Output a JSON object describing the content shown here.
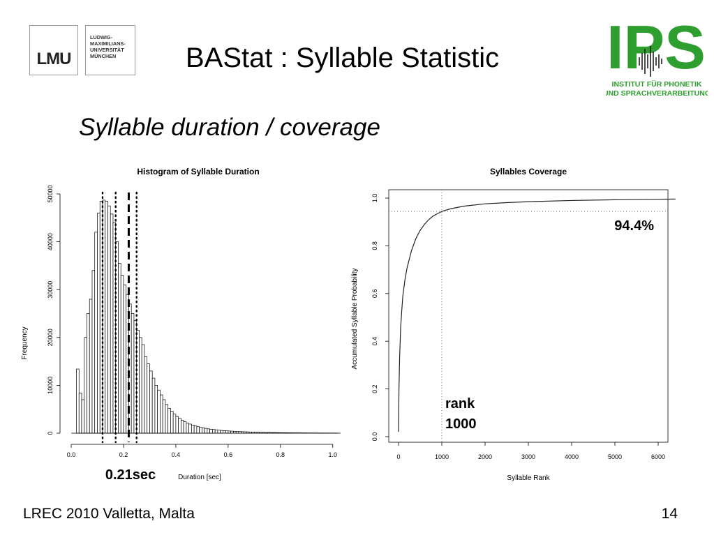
{
  "slide": {
    "title": "BAStat : Syllable Statistic",
    "subtitle": "Syllable duration / coverage",
    "footer_left": "LREC 2010 Valletta, Malta",
    "page_number": "14"
  },
  "logos": {
    "lmu": {
      "mark": "LMU",
      "text": "LUDWIG-\nMAXIMILIANS-\nUNIVERSITÄT\nMÜNCHEN"
    },
    "ips": {
      "mark": "IPS",
      "line1": "INSTITUT FÜR PHONETIK",
      "line2": "UND SPRACHVERARBEITUNG",
      "color": "#2e9e2e"
    }
  },
  "chart_data": [
    {
      "type": "bar",
      "title": "Histogram of Syllable Duration",
      "xlabel": "Duration [sec]",
      "ylabel": "Frequency",
      "xlim": [
        0,
        1.03
      ],
      "ylim": [
        0,
        50000
      ],
      "x_ticks": [
        "0.0",
        "0.2",
        "0.4",
        "0.6",
        "0.8",
        "1.0"
      ],
      "y_ticks": [
        "0",
        "10000",
        "20000",
        "30000",
        "40000",
        "50000"
      ],
      "bin_width": 0.01,
      "bin_start": 0.02,
      "values": [
        13400,
        8400,
        7000,
        20000,
        25000,
        28000,
        34000,
        42000,
        46000,
        48500,
        48700,
        48500,
        47500,
        45800,
        44000,
        40000,
        35500,
        33000,
        31000,
        29000,
        27000,
        25000,
        23500,
        21500,
        20000,
        18500,
        16000,
        14500,
        13000,
        11500,
        10000,
        9000,
        8000,
        7000,
        6000,
        5200,
        4600,
        4000,
        3500,
        3100,
        2700,
        2400,
        2100,
        1900,
        1700,
        1500,
        1350,
        1200,
        1100,
        1000,
        900,
        820,
        760,
        700,
        640,
        580,
        530,
        490,
        450,
        420,
        390,
        360,
        330,
        310,
        290,
        270,
        250,
        230,
        210,
        200,
        185,
        170,
        160,
        150,
        140,
        130,
        120,
        110,
        100,
        95,
        90,
        85,
        80,
        75,
        70,
        65,
        60,
        55,
        50,
        48,
        45,
        42,
        40,
        38,
        36,
        34,
        32,
        30,
        28,
        26
      ],
      "reference_lines": [
        {
          "x": 0.12,
          "style": "dotted"
        },
        {
          "x": 0.17,
          "style": "dotted"
        },
        {
          "x": 0.22,
          "style": "dashed"
        },
        {
          "x": 0.25,
          "style": "dotted"
        }
      ],
      "annotation": "0.21sec",
      "grid": false
    },
    {
      "type": "line",
      "title": "Syllables Coverage",
      "xlabel": "Syllable Rank",
      "ylabel": "Accumulated Syllable Probability",
      "xlim": [
        0,
        6500
      ],
      "ylim": [
        0,
        1
      ],
      "x_ticks": [
        "0",
        "1000",
        "2000",
        "3000",
        "4000",
        "5000",
        "6000"
      ],
      "y_ticks": [
        "0.0",
        "0.2",
        "0.4",
        "0.6",
        "0.8",
        "1.0"
      ],
      "x": [
        1,
        10,
        25,
        50,
        75,
        100,
        150,
        200,
        300,
        400,
        500,
        600,
        700,
        800,
        1000,
        1200,
        1500,
        2000,
        2500,
        3000,
        4000,
        5000,
        6000,
        6400
      ],
      "y": [
        0.02,
        0.2,
        0.33,
        0.46,
        0.53,
        0.59,
        0.66,
        0.71,
        0.78,
        0.83,
        0.865,
        0.89,
        0.91,
        0.925,
        0.944,
        0.955,
        0.966,
        0.976,
        0.981,
        0.985,
        0.99,
        0.993,
        0.995,
        0.996
      ],
      "reference_lines": [
        {
          "x": 1000,
          "style": "dotted"
        },
        {
          "y": 0.944,
          "style": "dotted"
        }
      ],
      "annotations": [
        "94.4%",
        "rank",
        "1000"
      ],
      "grid": false
    }
  ]
}
